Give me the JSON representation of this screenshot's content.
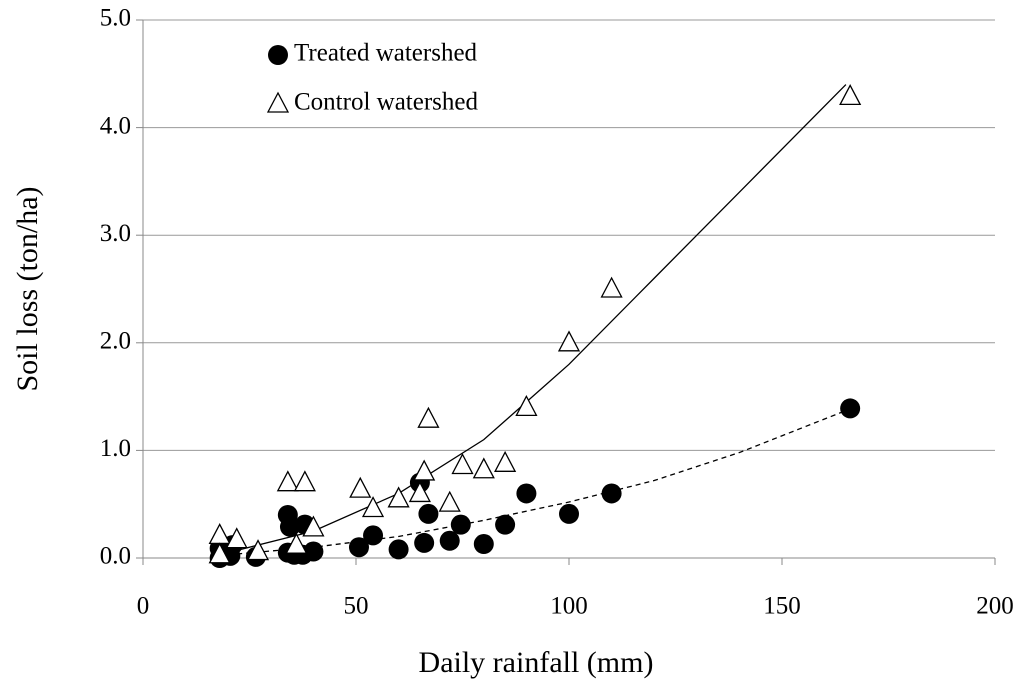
{
  "chart_data": {
    "type": "scatter",
    "xlabel": "Daily rainfall (mm)",
    "ylabel": "Soil loss (ton/ha)",
    "xlim": [
      0,
      200
    ],
    "xticks": [
      0,
      50,
      100,
      150,
      200
    ],
    "ylim": [
      0,
      5
    ],
    "yticks": [
      {
        "value": 0,
        "label": "0.0"
      },
      {
        "value": 1,
        "label": "1.0"
      },
      {
        "value": 2,
        "label": "2.0"
      },
      {
        "value": 3,
        "label": "3.0"
      },
      {
        "value": 4,
        "label": "4.0"
      },
      {
        "value": 5,
        "label": "5.0"
      }
    ],
    "grid": true,
    "legend": "upper left",
    "series": [
      {
        "name": "Treated watershed",
        "color": "#000000",
        "marker": "circle",
        "x": [
          18,
          18,
          21,
          20.5,
          26.5,
          34,
          34.5,
          38,
          34,
          35.5,
          37.5,
          40,
          50.7,
          54,
          60,
          65,
          66,
          67,
          72,
          74.6,
          80,
          85,
          90,
          100,
          110,
          166
        ],
        "values": [
          0.09,
          0,
          0.12,
          0.02,
          0.01,
          0.4,
          0.29,
          0.31,
          0.05,
          0.03,
          0.03,
          0.06,
          0.1,
          0.21,
          0.08,
          0.7,
          0.14,
          0.41,
          0.16,
          0.31,
          0.13,
          0.31,
          0.6,
          0.41,
          0.6,
          1.39
        ]
      },
      {
        "name": "Control watershed",
        "color": "#000000",
        "marker": "triangle",
        "x": [
          18,
          18,
          22,
          27,
          34,
          38,
          36,
          40,
          51,
          54,
          60,
          65,
          66,
          67,
          72,
          75,
          80,
          85,
          90,
          100,
          110,
          166
        ],
        "values": [
          0.21,
          0.03,
          0.17,
          0.06,
          0.7,
          0.7,
          0.12,
          0.28,
          0.64,
          0.46,
          0.55,
          0.6,
          0.8,
          1.29,
          0.51,
          0.86,
          0.82,
          0.88,
          1.4,
          2.0,
          2.5,
          4.29
        ]
      }
    ],
    "trendlines": [
      {
        "dash": false,
        "x": [
          20,
          40,
          60,
          80,
          100,
          120,
          140,
          165
        ],
        "values": [
          0.05,
          0.25,
          0.6,
          1.1,
          1.8,
          2.6,
          3.4,
          4.4
        ]
      },
      {
        "dash": true,
        "x": [
          20,
          40,
          60,
          80,
          100,
          120,
          140,
          165
        ],
        "values": [
          0.03,
          0.1,
          0.2,
          0.35,
          0.52,
          0.72,
          0.98,
          1.37
        ]
      }
    ]
  }
}
